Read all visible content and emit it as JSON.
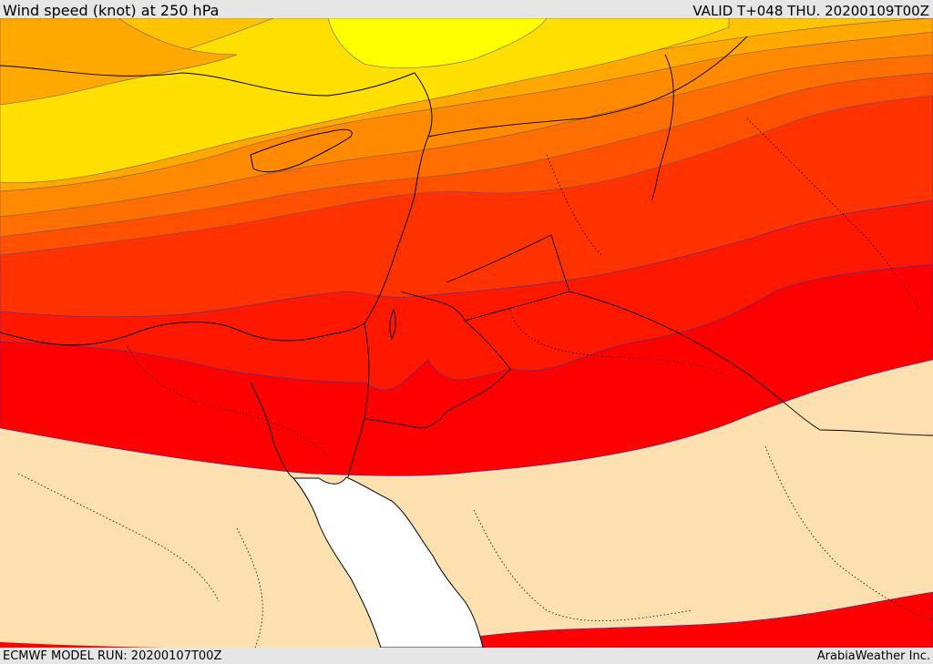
{
  "header": {
    "title": "Wind speed (knot) at 250 hPa",
    "valid": "VALID T+048 THU. 20200109T00Z"
  },
  "footer": {
    "model_run": "ECMWF MODEL RUN: 20200107T00Z",
    "credit": "ArabiaWeather Inc."
  },
  "map": {
    "colors": {
      "calm_land": "#fde0b0",
      "sea_below_threshold": "#ffffff",
      "band_1": "#ffff00",
      "band_2": "#ffdf00",
      "band_3": "#ffc400",
      "band_4": "#ffa800",
      "band_5": "#ff8a00",
      "band_6": "#ff6e00",
      "band_7": "#ff5000",
      "band_8": "#ff3200",
      "band_9": "#ff1800",
      "band_10": "#ff0000"
    }
  }
}
